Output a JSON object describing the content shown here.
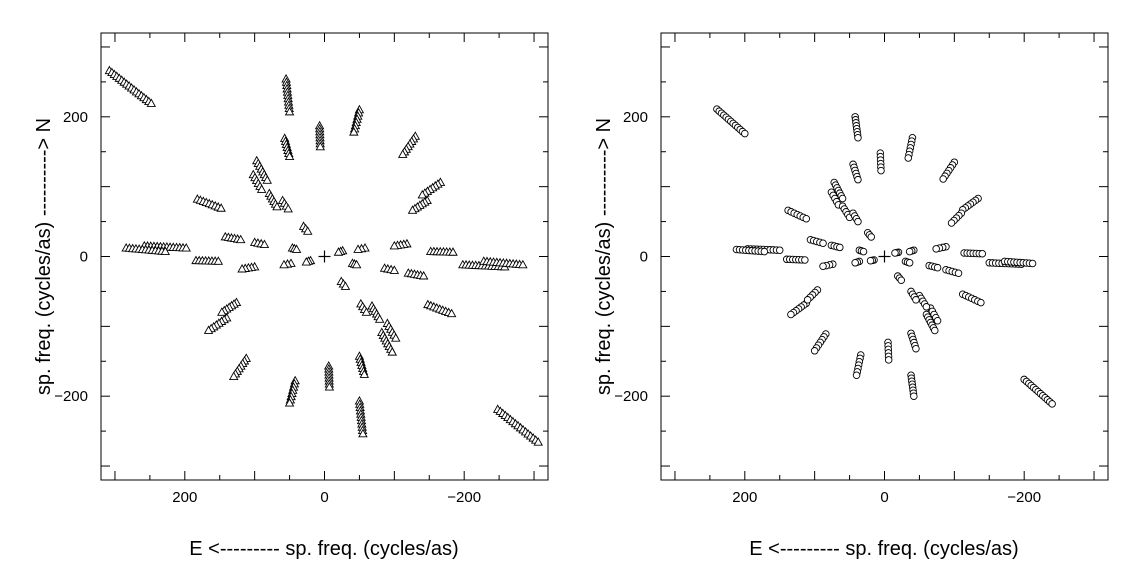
{
  "chart_data": [
    {
      "type": "scatter",
      "marker": "triangle",
      "title": "",
      "xlabel": "E <--------- sp. freq. (cycles/as)",
      "ylabel": "sp. freq. (cycles/as) ----------> N",
      "xlim": [
        320,
        -320
      ],
      "ylim": [
        -320,
        320
      ],
      "xticks": [
        200,
        0,
        -200
      ],
      "yticks": [
        200,
        0,
        -200
      ],
      "xtick_labels": [
        "200",
        "0",
        "−200"
      ],
      "ytick_labels": [
        "200",
        "0",
        "−200"
      ],
      "grid": false,
      "center_marker": [
        0,
        0
      ],
      "tracks": [
        {
          "from": [
            308,
            266
          ],
          "to": [
            248,
            219
          ]
        },
        {
          "from": [
            -248,
            -219
          ],
          "to": [
            -306,
            -266
          ]
        },
        {
          "from": [
            55,
            254
          ],
          "to": [
            50,
            207
          ]
        },
        {
          "from": [
            -50,
            -207
          ],
          "to": [
            -55,
            -254
          ]
        },
        {
          "from": [
            -50,
            210
          ],
          "to": [
            -42,
            178
          ]
        },
        {
          "from": [
            42,
            -178
          ],
          "to": [
            50,
            -210
          ]
        },
        {
          "from": [
            7,
            187
          ],
          "to": [
            6,
            157
          ]
        },
        {
          "from": [
            -6,
            -157
          ],
          "to": [
            -7,
            -187
          ]
        },
        {
          "from": [
            -130,
            172
          ],
          "to": [
            -112,
            146
          ]
        },
        {
          "from": [
            112,
            -146
          ],
          "to": [
            130,
            -172
          ]
        },
        {
          "from": [
            57,
            169
          ],
          "to": [
            50,
            143
          ]
        },
        {
          "from": [
            -50,
            -143
          ],
          "to": [
            -57,
            -169
          ]
        },
        {
          "from": [
            97,
            137
          ],
          "to": [
            82,
            109
          ]
        },
        {
          "from": [
            -82,
            -109
          ],
          "to": [
            -97,
            -137
          ]
        },
        {
          "from": [
            102,
            117
          ],
          "to": [
            90,
            96
          ]
        },
        {
          "from": [
            -90,
            -96
          ],
          "to": [
            -102,
            -117
          ]
        },
        {
          "from": [
            79,
            90
          ],
          "to": [
            68,
            71
          ]
        },
        {
          "from": [
            -68,
            -71
          ],
          "to": [
            -79,
            -90
          ]
        },
        {
          "from": [
            -166,
            106
          ],
          "to": [
            -140,
            88
          ]
        },
        {
          "from": [
            140,
            -88
          ],
          "to": [
            166,
            -106
          ]
        },
        {
          "from": [
            182,
            82
          ],
          "to": [
            148,
            69
          ]
        },
        {
          "from": [
            -148,
            -69
          ],
          "to": [
            -182,
            -82
          ]
        },
        {
          "from": [
            -147,
            80
          ],
          "to": [
            -126,
            66
          ]
        },
        {
          "from": [
            126,
            -66
          ],
          "to": [
            147,
            -80
          ]
        },
        {
          "from": [
            60,
            80
          ],
          "to": [
            52,
            68
          ]
        },
        {
          "from": [
            -52,
            -68
          ],
          "to": [
            -60,
            -80
          ]
        },
        {
          "from": [
            30,
            43
          ],
          "to": [
            24,
            36
          ]
        },
        {
          "from": [
            -24,
            -36
          ],
          "to": [
            -30,
            -43
          ]
        },
        {
          "from": [
            142,
            28
          ],
          "to": [
            120,
            24
          ]
        },
        {
          "from": [
            -120,
            -24
          ],
          "to": [
            -142,
            -28
          ]
        },
        {
          "from": [
            100,
            20
          ],
          "to": [
            86,
            17
          ]
        },
        {
          "from": [
            -86,
            -17
          ],
          "to": [
            -100,
            -20
          ]
        },
        {
          "from": [
            -152,
            7
          ],
          "to": [
            -184,
            6
          ]
        },
        {
          "from": [
            184,
            -6
          ],
          "to": [
            152,
            -7
          ]
        },
        {
          "from": [
            258,
            15
          ],
          "to": [
            198,
            12
          ]
        },
        {
          "from": [
            -198,
            -12
          ],
          "to": [
            -258,
            -15
          ]
        },
        {
          "from": [
            46,
            12
          ],
          "to": [
            40,
            10
          ]
        },
        {
          "from": [
            -40,
            -10
          ],
          "to": [
            -46,
            -12
          ]
        },
        {
          "from": [
            -228,
            -7
          ],
          "to": [
            -284,
            -12
          ]
        },
        {
          "from": [
            284,
            12
          ],
          "to": [
            228,
            7
          ]
        },
        {
          "from": [
            -118,
            18
          ],
          "to": [
            -100,
            15
          ]
        },
        {
          "from": [
            100,
            -15
          ],
          "to": [
            118,
            -18
          ]
        },
        {
          "from": [
            -58,
            12
          ],
          "to": [
            -48,
            10
          ]
        },
        {
          "from": [
            48,
            -10
          ],
          "to": [
            58,
            -12
          ]
        },
        {
          "from": [
            -26,
            8
          ],
          "to": [
            -20,
            6
          ]
        },
        {
          "from": [
            20,
            -6
          ],
          "to": [
            26,
            -8
          ]
        }
      ]
    },
    {
      "type": "scatter",
      "marker": "circle",
      "title": "",
      "xlabel": "E <--------- sp. freq. (cycles/as)",
      "ylabel": "sp. freq. (cycles/as) ----------> N",
      "xlim": [
        320,
        -320
      ],
      "ylim": [
        -320,
        320
      ],
      "xticks": [
        200,
        0,
        -200
      ],
      "yticks": [
        200,
        0,
        -200
      ],
      "xtick_labels": [
        "200",
        "0",
        "−200"
      ],
      "ytick_labels": [
        "200",
        "0",
        "−200"
      ],
      "grid": false,
      "center_marker": [
        0,
        0
      ],
      "tracks": [
        {
          "from": [
            240,
            211
          ],
          "to": [
            200,
            176
          ]
        },
        {
          "from": [
            -200,
            -176
          ],
          "to": [
            -240,
            -211
          ]
        },
        {
          "from": [
            42,
            200
          ],
          "to": [
            38,
            170
          ]
        },
        {
          "from": [
            -38,
            -170
          ],
          "to": [
            -42,
            -200
          ]
        },
        {
          "from": [
            -40,
            170
          ],
          "to": [
            -34,
            141
          ]
        },
        {
          "from": [
            34,
            -141
          ],
          "to": [
            40,
            -170
          ]
        },
        {
          "from": [
            6,
            148
          ],
          "to": [
            5,
            123
          ]
        },
        {
          "from": [
            -5,
            -123
          ],
          "to": [
            -6,
            -148
          ]
        },
        {
          "from": [
            -100,
            135
          ],
          "to": [
            -84,
            111
          ]
        },
        {
          "from": [
            84,
            -111
          ],
          "to": [
            100,
            -135
          ]
        },
        {
          "from": [
            45,
            132
          ],
          "to": [
            38,
            110
          ]
        },
        {
          "from": [
            -38,
            -110
          ],
          "to": [
            -45,
            -132
          ]
        },
        {
          "from": [
            72,
            106
          ],
          "to": [
            60,
            83
          ]
        },
        {
          "from": [
            -60,
            -83
          ],
          "to": [
            -72,
            -106
          ]
        },
        {
          "from": [
            76,
            92
          ],
          "to": [
            66,
            74
          ]
        },
        {
          "from": [
            -66,
            -74
          ],
          "to": [
            -76,
            -92
          ]
        },
        {
          "from": [
            60,
            72
          ],
          "to": [
            50,
            56
          ]
        },
        {
          "from": [
            -50,
            -56
          ],
          "to": [
            -60,
            -72
          ]
        },
        {
          "from": [
            -134,
            83
          ],
          "to": [
            -112,
            67
          ]
        },
        {
          "from": [
            112,
            -67
          ],
          "to": [
            134,
            -83
          ]
        },
        {
          "from": [
            138,
            66
          ],
          "to": [
            112,
            54
          ]
        },
        {
          "from": [
            -112,
            -54
          ],
          "to": [
            -138,
            -66
          ]
        },
        {
          "from": [
            -110,
            62
          ],
          "to": [
            -96,
            48
          ]
        },
        {
          "from": [
            96,
            -48
          ],
          "to": [
            110,
            -62
          ]
        },
        {
          "from": [
            45,
            62
          ],
          "to": [
            38,
            50
          ]
        },
        {
          "from": [
            -38,
            -50
          ],
          "to": [
            -45,
            -62
          ]
        },
        {
          "from": [
            24,
            34
          ],
          "to": [
            19,
            28
          ]
        },
        {
          "from": [
            -19,
            -28
          ],
          "to": [
            -24,
            -34
          ]
        },
        {
          "from": [
            106,
            24
          ],
          "to": [
            88,
            19
          ]
        },
        {
          "from": [
            -88,
            -19
          ],
          "to": [
            -106,
            -24
          ]
        },
        {
          "from": [
            76,
            16
          ],
          "to": [
            64,
            13
          ]
        },
        {
          "from": [
            -64,
            -13
          ],
          "to": [
            -76,
            -16
          ]
        },
        {
          "from": [
            -114,
            5
          ],
          "to": [
            -140,
            4
          ]
        },
        {
          "from": [
            140,
            -4
          ],
          "to": [
            114,
            -5
          ]
        },
        {
          "from": [
            196,
            11
          ],
          "to": [
            150,
            9
          ]
        },
        {
          "from": [
            -150,
            -9
          ],
          "to": [
            -196,
            -11
          ]
        },
        {
          "from": [
            36,
            9
          ],
          "to": [
            30,
            7
          ]
        },
        {
          "from": [
            -30,
            -7
          ],
          "to": [
            -36,
            -9
          ]
        },
        {
          "from": [
            -172,
            -7
          ],
          "to": [
            -212,
            -10
          ]
        },
        {
          "from": [
            212,
            10
          ],
          "to": [
            172,
            7
          ]
        },
        {
          "from": [
            -88,
            14
          ],
          "to": [
            -74,
            11
          ]
        },
        {
          "from": [
            74,
            -11
          ],
          "to": [
            88,
            -14
          ]
        },
        {
          "from": [
            -42,
            9
          ],
          "to": [
            -36,
            7
          ]
        },
        {
          "from": [
            36,
            -7
          ],
          "to": [
            42,
            -9
          ]
        },
        {
          "from": [
            -20,
            6
          ],
          "to": [
            -15,
            5
          ]
        },
        {
          "from": [
            15,
            -5
          ],
          "to": [
            20,
            -6
          ]
        }
      ]
    }
  ]
}
